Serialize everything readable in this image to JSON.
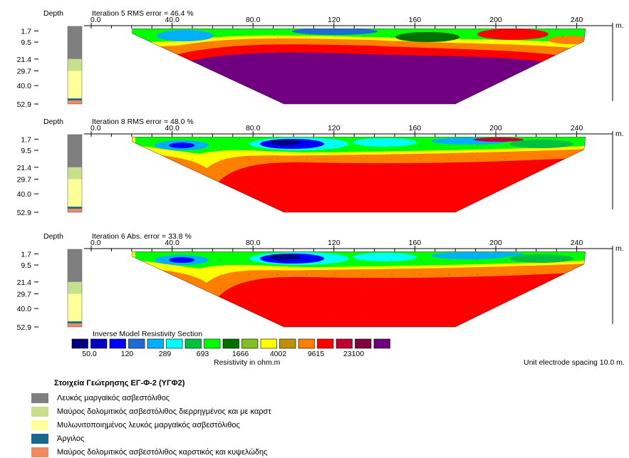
{
  "panels": [
    {
      "depth_label": "Depth",
      "title": "Iteration 5 RMS error = 46.4 %",
      "x_ticks": [
        "0.0",
        "40.0",
        "80.0",
        "120",
        "160",
        "200",
        "240"
      ],
      "x_unit": "m.",
      "depth_ticks": [
        "1.7",
        "9.5",
        "21.4",
        "29.7",
        "40.0",
        "52.9"
      ]
    },
    {
      "depth_label": "Depth",
      "title": "Iteration 8 RMS error = 48.0 %",
      "x_ticks": [
        "0.0",
        "40.0",
        "80.0",
        "120",
        "160",
        "200",
        "240"
      ],
      "x_unit": "m.",
      "depth_ticks": [
        "1.7",
        "9.5",
        "21.4",
        "29.7",
        "40.0",
        "52.9"
      ]
    },
    {
      "depth_label": "Depth",
      "title": "Iteration 6 Abs. error = 33.8 %",
      "x_ticks": [
        "0.0",
        "40.0",
        "80.0",
        "120",
        "160",
        "200",
        "240"
      ],
      "x_unit": "m.",
      "depth_ticks": [
        "1.7",
        "9.5",
        "21.4",
        "29.7",
        "40.0",
        "52.9"
      ]
    }
  ],
  "colorbar": {
    "title": "Inverse Model Resistivity Section",
    "colors": [
      "#000080",
      "#0000c0",
      "#0000ff",
      "#1e6ad6",
      "#00b0ff",
      "#00ffff",
      "#00c040",
      "#00ff00",
      "#007000",
      "#80c020",
      "#ffff00",
      "#c09000",
      "#ff8000",
      "#ff0000",
      "#c00030",
      "#800040",
      "#700080"
    ],
    "tick_labels": [
      "50.0",
      "120",
      "289",
      "693",
      "1666",
      "4002",
      "9615",
      "23100"
    ],
    "xlabel": "Resistivity in ohm.m"
  },
  "spacing_note": "Unit electrode spacing 10.0 m.",
  "lithology_legend": {
    "title": "Στοιχεία Γεώτρησης ΕΓ-Φ-2 (ΥΓΦ2)",
    "items": [
      {
        "label": "Λευκός μαργαϊκός ασβεστόλιθος",
        "color": "#7f7f7f"
      },
      {
        "label": "Μαύρος δολομιτικός ασβεστόλιθος διερρηγμένος και με καρστ",
        "color": "#c6e08c"
      },
      {
        "label": "Μυλωνιτοποιημένος λευκός μαργαϊκός ασβεστόλιθος",
        "color": "#ffff99"
      },
      {
        "label": "Άργιλος",
        "color": "#17698e"
      },
      {
        "label": "Μαύρος δολομιτικός ασβεστόλιθος καρστικός και κυψελώδης",
        "color": "#f08860"
      }
    ]
  },
  "chart_data": [
    {
      "type": "heatmap",
      "title": "Iteration 5 RMS error = 46.4 %",
      "xlabel": "m.",
      "ylabel": "Depth",
      "xlim": [
        0,
        245
      ],
      "ylim": [
        52.9,
        0
      ],
      "x_ticks": [
        0,
        40,
        80,
        120,
        160,
        200,
        240
      ],
      "y_ticks": [
        1.7,
        9.5,
        21.4,
        29.7,
        40.0,
        52.9
      ],
      "section_top_x_range": [
        15,
        245
      ],
      "section_bottom_x_range": [
        90,
        180
      ],
      "layers": [
        {
          "depth_range": [
            0,
            8
          ],
          "dominant": "green/blue (~700–2000 ohm.m)"
        },
        {
          "depth_range": [
            8,
            20
          ],
          "dominant": "orange/red (~10000–23100 ohm.m)"
        },
        {
          "depth_range": [
            20,
            52.9
          ],
          "dominant": "purple (>23100 ohm.m)"
        }
      ]
    },
    {
      "type": "heatmap",
      "title": "Iteration 8 RMS error = 48.0 %",
      "xlabel": "m.",
      "ylabel": "Depth",
      "xlim": [
        0,
        245
      ],
      "ylim": [
        52.9,
        0
      ],
      "x_ticks": [
        0,
        40,
        80,
        120,
        160,
        200,
        240
      ],
      "y_ticks": [
        1.7,
        9.5,
        21.4,
        29.7,
        40.0,
        52.9
      ],
      "section_top_x_range": [
        15,
        245
      ],
      "section_bottom_x_range": [
        90,
        180
      ],
      "layers": [
        {
          "depth_range": [
            0,
            14
          ],
          "dominant": "blue/cyan/green (~50–2000 ohm.m)"
        },
        {
          "depth_range": [
            14,
            52.9
          ],
          "dominant": "red (~9615–23100 ohm.m)"
        }
      ]
    },
    {
      "type": "heatmap",
      "title": "Iteration 6 Abs. error = 33.8 %",
      "xlabel": "m.",
      "ylabel": "Depth",
      "xlim": [
        0,
        245
      ],
      "ylim": [
        52.9,
        0
      ],
      "x_ticks": [
        0,
        40,
        80,
        120,
        160,
        200,
        240
      ],
      "y_ticks": [
        1.7,
        9.5,
        21.4,
        29.7,
        40.0,
        52.9
      ],
      "section_top_x_range": [
        15,
        245
      ],
      "section_bottom_x_range": [
        90,
        180
      ],
      "layers": [
        {
          "depth_range": [
            0,
            14
          ],
          "dominant": "blue/cyan/green (~50–2000 ohm.m)"
        },
        {
          "depth_range": [
            14,
            52.9
          ],
          "dominant": "red (~9615–23100 ohm.m)"
        }
      ]
    }
  ],
  "borehole_log": [
    {
      "depth_range": [
        0,
        21.4
      ],
      "color": "#7f7f7f"
    },
    {
      "depth_range": [
        21.4,
        29.7
      ],
      "color": "#c6e08c"
    },
    {
      "depth_range": [
        29.7,
        49
      ],
      "color": "#ffff99"
    },
    {
      "depth_range": [
        49,
        50.5
      ],
      "color": "#17698e"
    },
    {
      "depth_range": [
        50.5,
        52.9
      ],
      "color": "#f08860"
    }
  ]
}
